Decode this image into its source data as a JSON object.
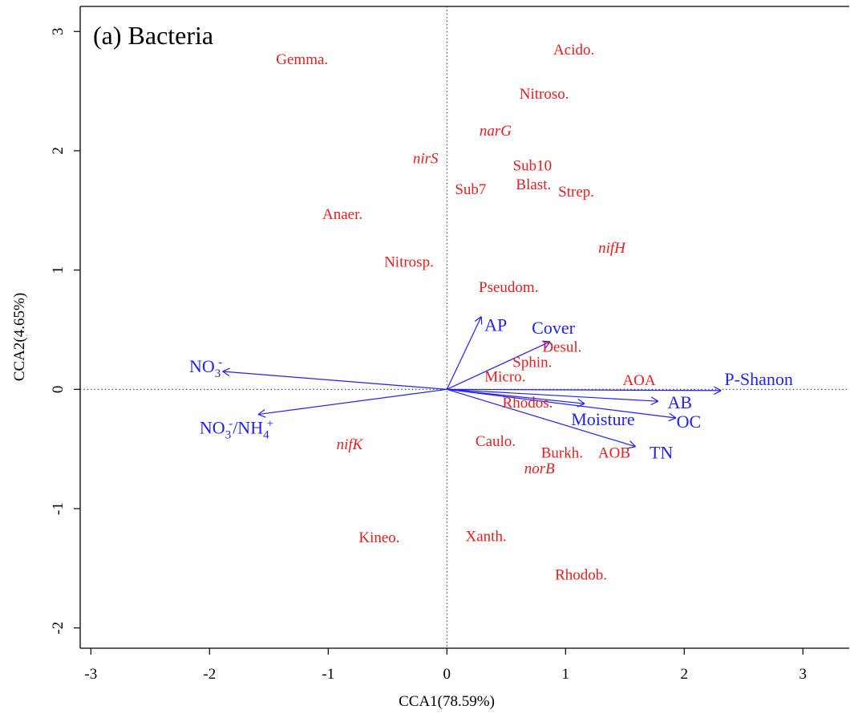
{
  "chart_data": {
    "type": "scatter",
    "title": "(a) Bacteria",
    "xlabel": "CCA1(78.59%)",
    "ylabel": "CCA2(4.65%)",
    "xlim": [
      -3.09,
      3.39
    ],
    "ylim": [
      -2.17,
      3.21
    ],
    "xticks": [
      -3,
      -2,
      -1,
      0,
      1,
      2,
      3
    ],
    "yticks": [
      -2,
      -1,
      0,
      1,
      2,
      3
    ],
    "grid": false,
    "zero_lines": true,
    "colors": {
      "species": "#e81e1e",
      "environment": "#1f1fff",
      "zero_line": "#333333"
    },
    "species": [
      {
        "label": "Gemma.",
        "x": -1.22,
        "y": 2.77,
        "italic": false
      },
      {
        "label": "Acido.",
        "x": 1.07,
        "y": 2.85,
        "italic": false
      },
      {
        "label": "Nitroso.",
        "x": 0.82,
        "y": 2.48,
        "italic": false
      },
      {
        "label": "narG",
        "x": 0.41,
        "y": 2.17,
        "italic": true
      },
      {
        "label": "nirS",
        "x": -0.18,
        "y": 1.94,
        "italic": true
      },
      {
        "label": "Sub10",
        "x": 0.72,
        "y": 1.88,
        "italic": false
      },
      {
        "label": "Blast.",
        "x": 0.73,
        "y": 1.72,
        "italic": false
      },
      {
        "label": "Sub7",
        "x": 0.2,
        "y": 1.68,
        "italic": false
      },
      {
        "label": "Strep.",
        "x": 1.09,
        "y": 1.66,
        "italic": false
      },
      {
        "label": "Anaer.",
        "x": -0.88,
        "y": 1.47,
        "italic": false
      },
      {
        "label": "nifH",
        "x": 1.39,
        "y": 1.19,
        "italic": true
      },
      {
        "label": "Nitrosp.",
        "x": -0.32,
        "y": 1.07,
        "italic": false
      },
      {
        "label": "Pseudom.",
        "x": 0.52,
        "y": 0.86,
        "italic": false
      },
      {
        "label": "Desul.",
        "x": 0.97,
        "y": 0.36,
        "italic": false
      },
      {
        "label": "Sphin.",
        "x": 0.72,
        "y": 0.23,
        "italic": false
      },
      {
        "label": "Micro.",
        "x": 0.49,
        "y": 0.11,
        "italic": false
      },
      {
        "label": "AOA",
        "x": 1.62,
        "y": 0.08,
        "italic": false
      },
      {
        "label": "Rhodos.",
        "x": 0.68,
        "y": -0.11,
        "italic": false
      },
      {
        "label": "Caulo.",
        "x": 0.41,
        "y": -0.43,
        "italic": false
      },
      {
        "label": "nifK",
        "x": -0.82,
        "y": -0.46,
        "italic": true
      },
      {
        "label": "Burkh.",
        "x": 0.97,
        "y": -0.53,
        "italic": false
      },
      {
        "label": "AOB",
        "x": 1.41,
        "y": -0.53,
        "italic": false
      },
      {
        "label": "norB",
        "x": 0.78,
        "y": -0.66,
        "italic": true
      },
      {
        "label": "Kineo.",
        "x": -0.57,
        "y": -1.24,
        "italic": false
      },
      {
        "label": "Xanth.",
        "x": 0.33,
        "y": -1.23,
        "italic": false
      },
      {
        "label": "Rhodob.",
        "x": 1.13,
        "y": -1.55,
        "italic": false
      }
    ],
    "arrows": [
      {
        "label": "AP",
        "x": 0.29,
        "y": 0.61
      },
      {
        "label": "Cover",
        "x": 0.87,
        "y": 0.4
      },
      {
        "label": "NO3-",
        "x": -1.89,
        "y": 0.15
      },
      {
        "label": "NO3-/NH4+",
        "x": -1.59,
        "y": -0.21
      },
      {
        "label": "P-Shanon",
        "x": 2.31,
        "y": -0.01
      },
      {
        "label": "AB",
        "x": 1.78,
        "y": -0.1
      },
      {
        "label": "OC",
        "x": 1.93,
        "y": -0.24
      },
      {
        "label": "TN",
        "x": 1.59,
        "y": -0.48
      },
      {
        "label": "Moisture",
        "x": 1.16,
        "y": -0.12
      }
    ]
  }
}
